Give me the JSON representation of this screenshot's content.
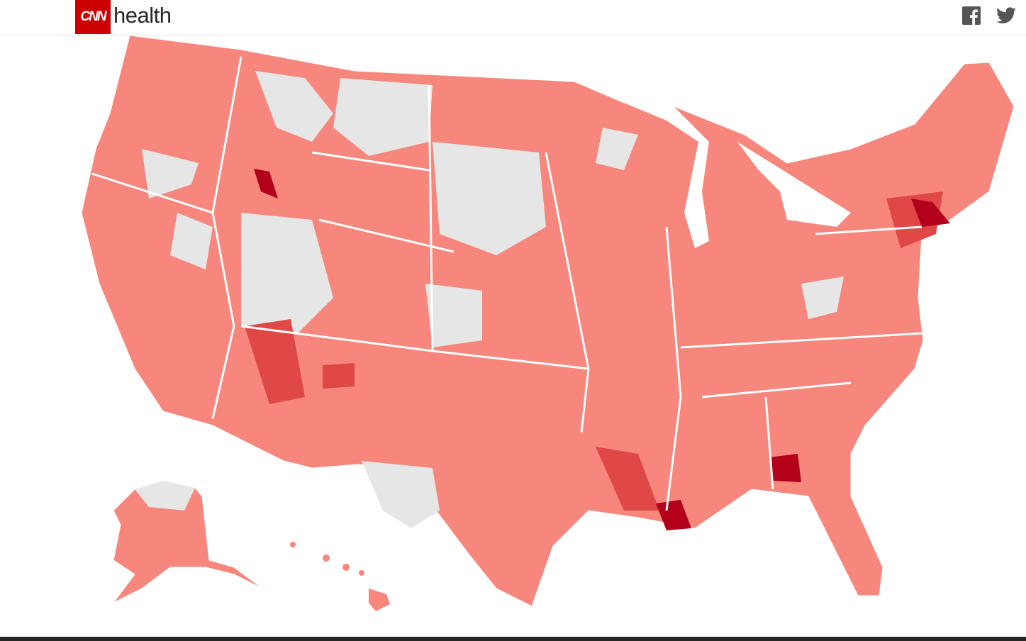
{
  "header": {
    "logo": "CNN",
    "section": "health"
  }
}
